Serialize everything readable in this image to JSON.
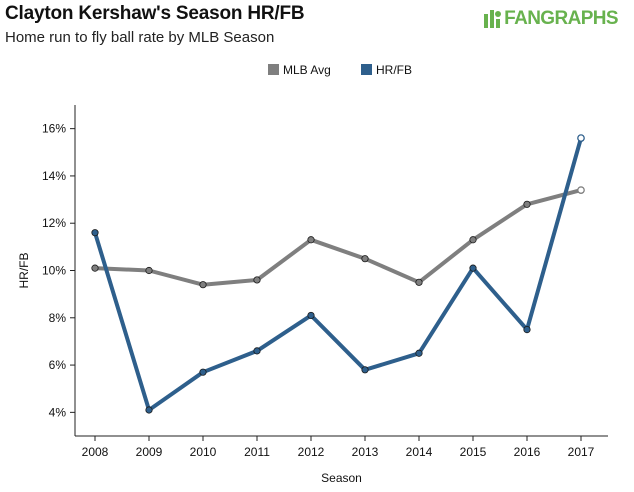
{
  "header": {
    "title": "Clayton Kershaw's Season HR/FB",
    "subtitle": "Home run to fly ball rate by MLB Season",
    "logo_text": "FANGRAPHS"
  },
  "chart_data": {
    "type": "line",
    "title": "Clayton Kershaw's Season HR/FB",
    "subtitle": "Home run to fly ball rate by MLB Season",
    "xlabel": "Season",
    "ylabel": "HR/FB",
    "categories": [
      "2008",
      "2009",
      "2010",
      "2011",
      "2012",
      "2013",
      "2014",
      "2015",
      "2016",
      "2017"
    ],
    "ylim": [
      3,
      17
    ],
    "yticks": [
      4,
      6,
      8,
      10,
      12,
      14,
      16
    ],
    "ytick_labels": [
      "4%",
      "6%",
      "8%",
      "10%",
      "12%",
      "14%",
      "16%"
    ],
    "grid": false,
    "legend": "top-center",
    "series": [
      {
        "name": "MLB Avg",
        "color": "#7f7f7f",
        "values": [
          10.1,
          10.0,
          9.4,
          9.6,
          11.3,
          10.5,
          9.5,
          11.3,
          12.8,
          13.4
        ]
      },
      {
        "name": "HR/FB",
        "color": "#2e5f8c",
        "values": [
          11.6,
          4.1,
          5.7,
          6.6,
          8.1,
          5.8,
          6.5,
          10.1,
          7.5,
          15.6
        ]
      }
    ]
  }
}
